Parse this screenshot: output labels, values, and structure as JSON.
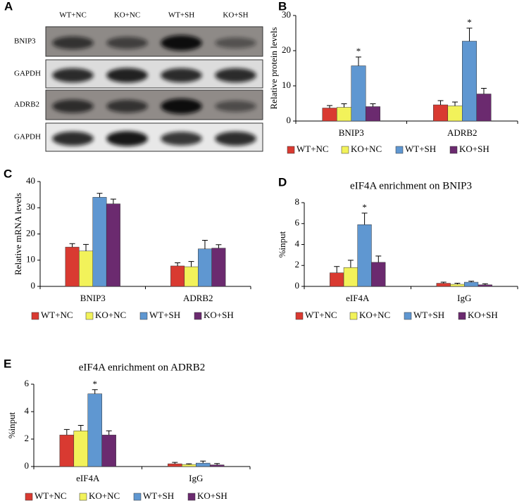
{
  "blot": {
    "panel_label": "A",
    "columns": [
      "WT+NC",
      "KO+NC",
      "WT+SH",
      "KO+SH"
    ],
    "rows": [
      "BNIP3",
      "GAPDH",
      "ADRB2",
      "GAPDH"
    ]
  },
  "chart_data": [
    {
      "type": "bar",
      "panel_label": "B",
      "ylabel": "Relative protein levels",
      "categories": [
        "BNIP3",
        "ADRB2"
      ],
      "ylim": [
        0,
        30
      ],
      "yticks": [
        0,
        10,
        20,
        30
      ],
      "legend": "bottom",
      "series": [
        {
          "name": "WT+NC",
          "color": "#d93a31",
          "values": [
            3.7,
            4.6
          ],
          "errors": [
            0.7,
            1.2
          ]
        },
        {
          "name": "KO+NC",
          "color": "#f2f25a",
          "values": [
            3.9,
            4.3
          ],
          "errors": [
            1.0,
            1.1
          ]
        },
        {
          "name": "WT+SH",
          "color": "#5f97d1",
          "values": [
            15.7,
            22.7
          ],
          "errors": [
            2.5,
            3.7
          ],
          "annotations": [
            "*",
            "*"
          ]
        },
        {
          "name": "KO+SH",
          "color": "#6b2a6f",
          "values": [
            4.1,
            7.7
          ],
          "errors": [
            0.8,
            1.6
          ]
        }
      ]
    },
    {
      "type": "bar",
      "panel_label": "C",
      "ylabel": "Relative mRNA levels",
      "categories": [
        "BNIP3",
        "ADRB2"
      ],
      "ylim": [
        0,
        40
      ],
      "yticks": [
        0,
        10,
        20,
        30,
        40
      ],
      "legend": "bottom",
      "series": [
        {
          "name": "WT+NC",
          "color": "#d93a31",
          "values": [
            15,
            7.8
          ],
          "errors": [
            1.3,
            1.2
          ]
        },
        {
          "name": "KO+NC",
          "color": "#f2f25a",
          "values": [
            13.5,
            7.5
          ],
          "errors": [
            2.5,
            2.0
          ]
        },
        {
          "name": "WT+SH",
          "color": "#5f97d1",
          "values": [
            34,
            14.3
          ],
          "errors": [
            1.5,
            3.3
          ]
        },
        {
          "name": "KO+SH",
          "color": "#6b2a6f",
          "values": [
            31.5,
            14.6
          ],
          "errors": [
            1.8,
            1.3
          ]
        }
      ]
    },
    {
      "type": "bar",
      "panel_label": "D",
      "title": "eIF4A enrichment on BNIP3",
      "ylabel": "%input",
      "categories": [
        "eIF4A",
        "IgG"
      ],
      "ylim": [
        0,
        8
      ],
      "yticks": [
        0,
        2,
        4,
        6,
        8
      ],
      "legend": "bottom",
      "series": [
        {
          "name": "WT+NC",
          "color": "#d93a31",
          "values": [
            1.3,
            0.3
          ],
          "errors": [
            0.6,
            0.1
          ]
        },
        {
          "name": "KO+NC",
          "color": "#f2f25a",
          "values": [
            1.8,
            0.2
          ],
          "errors": [
            0.7,
            0.1
          ]
        },
        {
          "name": "WT+SH",
          "color": "#5f97d1",
          "values": [
            5.9,
            0.4
          ],
          "errors": [
            1.1,
            0.1
          ],
          "annotations": [
            "*",
            null
          ]
        },
        {
          "name": "KO+SH",
          "color": "#6b2a6f",
          "values": [
            2.3,
            0.15
          ],
          "errors": [
            0.6,
            0.1
          ]
        }
      ]
    },
    {
      "type": "bar",
      "panel_label": "E",
      "title": "eIF4A enrichment on ADRB2",
      "ylabel": "%input",
      "categories": [
        "eIF4A",
        "IgG"
      ],
      "ylim": [
        0,
        6
      ],
      "yticks": [
        0,
        2,
        4,
        6
      ],
      "legend": "bottom",
      "series": [
        {
          "name": "WT+NC",
          "color": "#d93a31",
          "values": [
            2.3,
            0.2
          ],
          "errors": [
            0.4,
            0.1
          ]
        },
        {
          "name": "KO+NC",
          "color": "#f2f25a",
          "values": [
            2.6,
            0.15
          ],
          "errors": [
            0.4,
            0.05
          ]
        },
        {
          "name": "WT+SH",
          "color": "#5f97d1",
          "values": [
            5.3,
            0.25
          ],
          "errors": [
            0.3,
            0.15
          ],
          "annotations": [
            "*",
            null
          ]
        },
        {
          "name": "KO+SH",
          "color": "#6b2a6f",
          "values": [
            2.3,
            0.12
          ],
          "errors": [
            0.3,
            0.1
          ]
        }
      ]
    }
  ]
}
